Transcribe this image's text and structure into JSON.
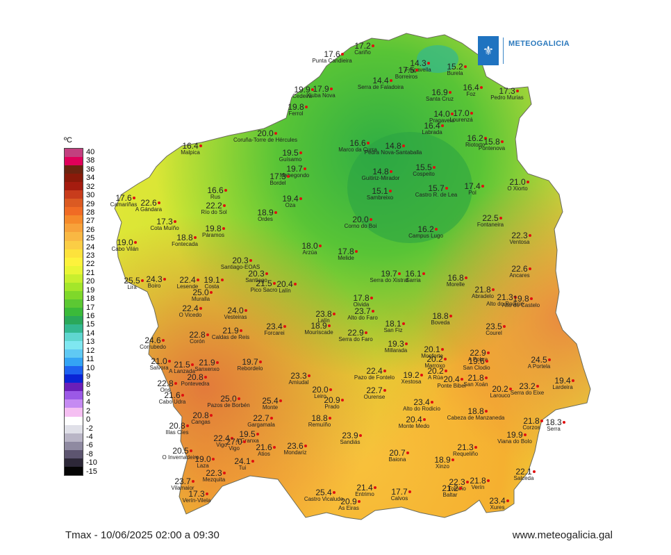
{
  "logo": {
    "text": "METEOGALICIA",
    "icon": "galicia-shield-icon"
  },
  "legend": {
    "unit": "ºC",
    "ticks": [
      "40",
      "38",
      "36",
      "34",
      "32",
      "30",
      "29",
      "28",
      "27",
      "26",
      "25",
      "24",
      "23",
      "22",
      "21",
      "20",
      "19",
      "18",
      "17",
      "16",
      "15",
      "14",
      "13",
      "12",
      "11",
      "10",
      "9",
      "8",
      "6",
      "4",
      "2",
      "0",
      "-2",
      "-4",
      "-6",
      "-8",
      "-10",
      "-15"
    ],
    "colors": [
      "#c2407f",
      "#e0005a",
      "#6b2410",
      "#8a1a0a",
      "#a51c0f",
      "#c83c1c",
      "#db5a22",
      "#f06b24",
      "#f58a2a",
      "#f7a23a",
      "#f9b843",
      "#fbcd45",
      "#fde23c",
      "#fdf23c",
      "#e9f535",
      "#c8ef2e",
      "#a4e62a",
      "#7fd82a",
      "#5cc833",
      "#3bba3a",
      "#2aa85a",
      "#33b890",
      "#5fd6d0",
      "#7fe7f1",
      "#5fc9f3",
      "#34a4f4",
      "#1e62f0",
      "#0a24d6",
      "#6a1fb8",
      "#9b59e6",
      "#c58af2",
      "#f5bff2",
      "#ffffff",
      "#e0e0e8",
      "#b9b5c6",
      "#8f8aa1",
      "#5d5570",
      "#2d2838",
      "#050505"
    ]
  },
  "footer": {
    "caption": "Tmax - 10/06/2025 02:00 a 09:30",
    "website": "www.meteogalicia.gal"
  },
  "map_data": {
    "stations": [
      {
        "v": "17.6",
        "n": "Punta Candieira"
      },
      {
        "v": "17.2",
        "n": "Cariño"
      },
      {
        "v": "14.3",
        "n": "Fragavella"
      },
      {
        "v": "15.2",
        "n": "Burela"
      },
      {
        "v": "17.5",
        "n": "Borreiros"
      },
      {
        "v": "14.4",
        "n": "Serra de Faladoira"
      },
      {
        "v": "19.9",
        "n": "Cedeira"
      },
      {
        "v": "17.9",
        "n": "Xiuba Nova"
      },
      {
        "v": "16.9",
        "n": "Santa Cruz"
      },
      {
        "v": "16.4",
        "n": "Foz"
      },
      {
        "v": "17.3",
        "n": "Pedro Murias"
      },
      {
        "v": "19.8",
        "n": "Ferrol"
      },
      {
        "v": "14.0",
        "n": "Pragavela"
      },
      {
        "v": "17.0",
        "n": "Lourenzá"
      },
      {
        "v": "16.4",
        "n": "Labrada"
      },
      {
        "v": "20.0",
        "n": "Coruña-Torre de Hércules"
      },
      {
        "v": "16.4",
        "n": "Malpica"
      },
      {
        "v": "16.6",
        "n": "Marco da Curra"
      },
      {
        "v": "14.8",
        "n": "Pedra Nova-Santaballa"
      },
      {
        "v": "16.2",
        "n": "Riotorto"
      },
      {
        "v": "15.8",
        "n": "Pontenova"
      },
      {
        "v": "19.5",
        "n": "Guísamo"
      },
      {
        "v": "19.7",
        "n": "Mabegondo"
      },
      {
        "v": "17.3",
        "n": "Bordel"
      },
      {
        "v": "14.8",
        "n": "Guitiriz-Mirador"
      },
      {
        "v": "15.5",
        "n": "Cospeito"
      },
      {
        "v": "15.1",
        "n": "Sambreixo"
      },
      {
        "v": "15.7",
        "n": "Castro R. de Lea"
      },
      {
        "v": "17.4",
        "n": "Pol"
      },
      {
        "v": "21.0",
        "n": "O Xiorto"
      },
      {
        "v": "17.6",
        "n": "Camariñas"
      },
      {
        "v": "22.6",
        "n": "A Gándara"
      },
      {
        "v": "16.6",
        "n": "Rus"
      },
      {
        "v": "22.2",
        "n": "Río do Sol"
      },
      {
        "v": "19.4",
        "n": "Oza"
      },
      {
        "v": "18.9",
        "n": "Ordes"
      },
      {
        "v": "17.3",
        "n": "Cota Muíño"
      },
      {
        "v": "19.8",
        "n": "Páramos"
      },
      {
        "v": "20.0",
        "n": "Corno do Boi"
      },
      {
        "v": "22.5",
        "n": "Fontaneira"
      },
      {
        "v": "16.2",
        "n": "Campus Lugo"
      },
      {
        "v": "18.8",
        "n": "Fontecada"
      },
      {
        "v": "22.3",
        "n": "Ventosa"
      },
      {
        "v": "19.0",
        "n": "Cabo Vilán"
      },
      {
        "v": "18.0",
        "n": "Arzúa"
      },
      {
        "v": "17.8",
        "n": "Melide"
      },
      {
        "v": "20.3",
        "n": "Santiago-EOAS"
      },
      {
        "v": "22.6",
        "n": "Ancares"
      },
      {
        "v": "25.5",
        "n": "Lira"
      },
      {
        "v": "24.3",
        "n": "Boiro"
      },
      {
        "v": "22.4",
        "n": "Lesende"
      },
      {
        "v": "19.1",
        "n": "Costa"
      },
      {
        "v": "20.3",
        "n": "Santiago"
      },
      {
        "v": "21.5",
        "n": "Pico Sacro"
      },
      {
        "v": "20.4",
        "n": "Lalín"
      },
      {
        "v": "19.7",
        "n": "Serra do Xistral"
      },
      {
        "v": "16.1",
        "n": "Sarria"
      },
      {
        "v": "16.8",
        "n": "Morelle"
      },
      {
        "v": "21.8",
        "n": "Abradelo"
      },
      {
        "v": "21.3",
        "n": "Alto do Rodicio"
      },
      {
        "v": "19.8",
        "n": "Alto do Castelo"
      },
      {
        "v": "25.0",
        "n": "Muralla"
      },
      {
        "v": "17.8",
        "n": "Oivida"
      },
      {
        "v": "22.4",
        "n": "O Vicedo"
      },
      {
        "v": "24.0",
        "n": "Vesteiras"
      },
      {
        "v": "23.8",
        "n": "Lalín"
      },
      {
        "v": "23.7",
        "n": "Alto do Faro"
      },
      {
        "v": "18.8",
        "n": "Boveda"
      },
      {
        "v": "23.4",
        "n": "Forcarei"
      },
      {
        "v": "18.9",
        "n": "Mouriscade"
      },
      {
        "v": "18.1",
        "n": "San Fiz"
      },
      {
        "v": "23.5",
        "n": "Courel"
      },
      {
        "v": "24.6",
        "n": "Corrubedo"
      },
      {
        "v": "22.8",
        "n": "Corón"
      },
      {
        "v": "21.9",
        "n": "Caldas de Reis"
      },
      {
        "v": "22.9",
        "n": "Serra do Faro"
      },
      {
        "v": "19.3",
        "n": "Millarada"
      },
      {
        "v": "21.0",
        "n": "Salvora"
      },
      {
        "v": "21.5",
        "n": "A Lanzada"
      },
      {
        "v": "21.9",
        "n": "Sanxenxo"
      },
      {
        "v": "19.7",
        "n": "Rebordelo"
      },
      {
        "v": "20.1",
        "n": "Monforte"
      },
      {
        "v": "20.2",
        "n": "Marroxo"
      },
      {
        "v": "22.9",
        "n": "A Pobra"
      },
      {
        "v": "19.6",
        "n": "San Clodio"
      },
      {
        "v": "24.5",
        "n": "A Portela"
      },
      {
        "v": "22.8",
        "n": "Ons"
      },
      {
        "v": "20.8",
        "n": "Pontevedra"
      },
      {
        "v": "23.3",
        "n": "Amiudal"
      },
      {
        "v": "22.4",
        "n": "Pazo de Fontelo"
      },
      {
        "v": "19.2",
        "n": "Xestosa"
      },
      {
        "v": "20.2",
        "n": "A Rúa"
      },
      {
        "v": "20.4",
        "n": "Ponte Bibei"
      },
      {
        "v": "21.8",
        "n": "San Xoán"
      },
      {
        "v": "20.2",
        "n": "Larouco"
      },
      {
        "v": "23.2",
        "n": "Serra do Eixe"
      },
      {
        "v": "19.4",
        "n": "Lardeira"
      },
      {
        "v": "21.6",
        "n": "Cabo Udra"
      },
      {
        "v": "25.0",
        "n": "Pazos de Borbén"
      },
      {
        "v": "25.4",
        "n": "Monte"
      },
      {
        "v": "20.0",
        "n": "Leiro"
      },
      {
        "v": "20.9",
        "n": "Prado"
      },
      {
        "v": "22.7",
        "n": "Ourense"
      },
      {
        "v": "23.4",
        "n": "Alto do Rodicio"
      },
      {
        "v": "18.8",
        "n": "Cabeza de Manzaneda"
      },
      {
        "v": "21.8",
        "n": "Corzos"
      },
      {
        "v": "18.3",
        "n": "Serra"
      },
      {
        "v": "20.8",
        "n": "Cangas"
      },
      {
        "v": "22.7",
        "n": "Gargamala"
      },
      {
        "v": "18.8",
        "n": "Remuíño"
      },
      {
        "v": "20.4",
        "n": "Monte Medo"
      },
      {
        "v": "20.8",
        "n": "Illas Cíes"
      },
      {
        "v": "19.5",
        "n": "A Granxa"
      },
      {
        "v": "23.9",
        "n": "Sandiás"
      },
      {
        "v": "19.9",
        "n": "Viana do Bolo"
      },
      {
        "v": "22.4",
        "n": "Vigo"
      },
      {
        "v": "27.0",
        "n": "Vigo"
      },
      {
        "v": "21.6",
        "n": "Atios"
      },
      {
        "v": "23.6",
        "n": "Mondariz"
      },
      {
        "v": "21.3",
        "n": "Requeliño"
      },
      {
        "v": "20.5",
        "n": "O Invernadeiro"
      },
      {
        "v": "20.7",
        "n": "Baiona"
      },
      {
        "v": "18.9",
        "n": "Xinzo"
      },
      {
        "v": "19.0",
        "n": "Laza"
      },
      {
        "v": "24.1",
        "n": "Tui"
      },
      {
        "v": "22.1",
        "n": "Salceda"
      },
      {
        "v": "22.3",
        "n": "Mezquita"
      },
      {
        "v": "22.3",
        "n": "Tomiño"
      },
      {
        "v": "21.8",
        "n": "Verín"
      },
      {
        "v": "23.7",
        "n": "Vilamaior"
      },
      {
        "v": "25.4",
        "n": "Castro Vicaludo"
      },
      {
        "v": "21.4",
        "n": "Entrimo"
      },
      {
        "v": "17.7",
        "n": "Calvos"
      },
      {
        "v": "21.2",
        "n": "Baltar"
      },
      {
        "v": "17.3",
        "n": "Verín-Vilela"
      },
      {
        "v": "20.9",
        "n": "As Eiras"
      },
      {
        "v": "23.4",
        "n": "Xures"
      },
      {
        "v": "23.3",
        "n": "A Trabe"
      }
    ]
  }
}
